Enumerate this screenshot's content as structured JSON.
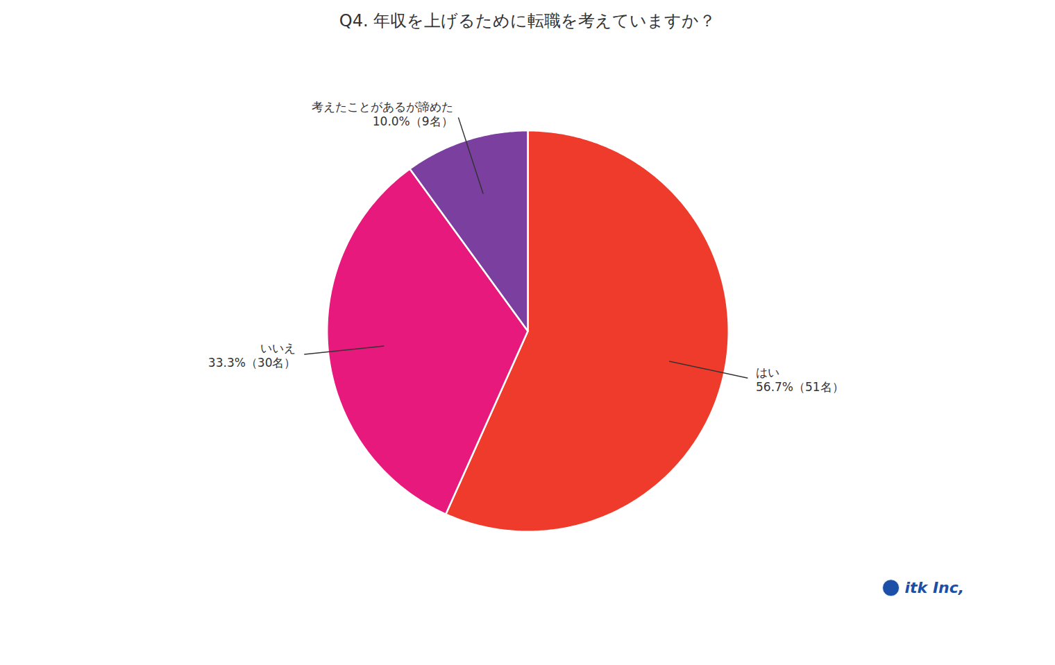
{
  "chart_data": {
    "type": "pie",
    "title": "Q4. 年収を上げるために転職を考えていますか？",
    "categories": [
      "はい",
      "いいえ",
      "考えたことがあるが諦めた"
    ],
    "values": [
      56.7,
      33.3,
      10.0
    ],
    "value_labels": [
      "56.7%（51名）",
      "33.3%（30名）",
      "10.0%（9名）"
    ],
    "colors": [
      "#EF3B2C",
      "#E8197D",
      "#7B3FA0"
    ],
    "data_labels": true,
    "legend": false,
    "annotations": [
      {
        "text": "itk Inc,",
        "color": "#1B4FA8"
      }
    ]
  }
}
